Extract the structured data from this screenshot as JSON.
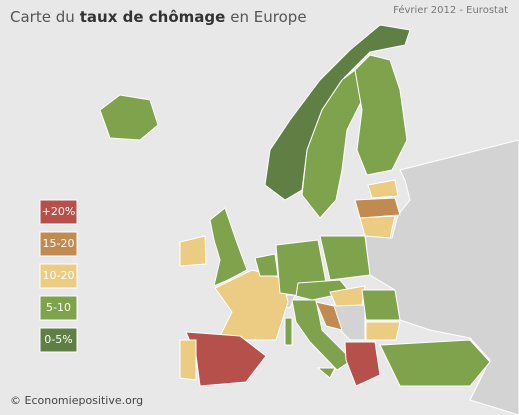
{
  "header": {
    "title_start": "Carte du",
    "title_bold": "taux de chômage",
    "title_end": "en Europe",
    "source": "Février 2012 - Eurostat"
  },
  "legend": [
    {
      "label": "+20%",
      "color": "#b5504b"
    },
    {
      "label": "15-20",
      "color": "#c18a51"
    },
    {
      "label": "10-20",
      "color": "#eccb83"
    },
    {
      "label": "5-10",
      "color": "#7fa24c"
    },
    {
      "label": "0-5%",
      "color": "#5f7f45"
    }
  ],
  "footer": {
    "copyright": "© Economiepositive.org"
  }
}
